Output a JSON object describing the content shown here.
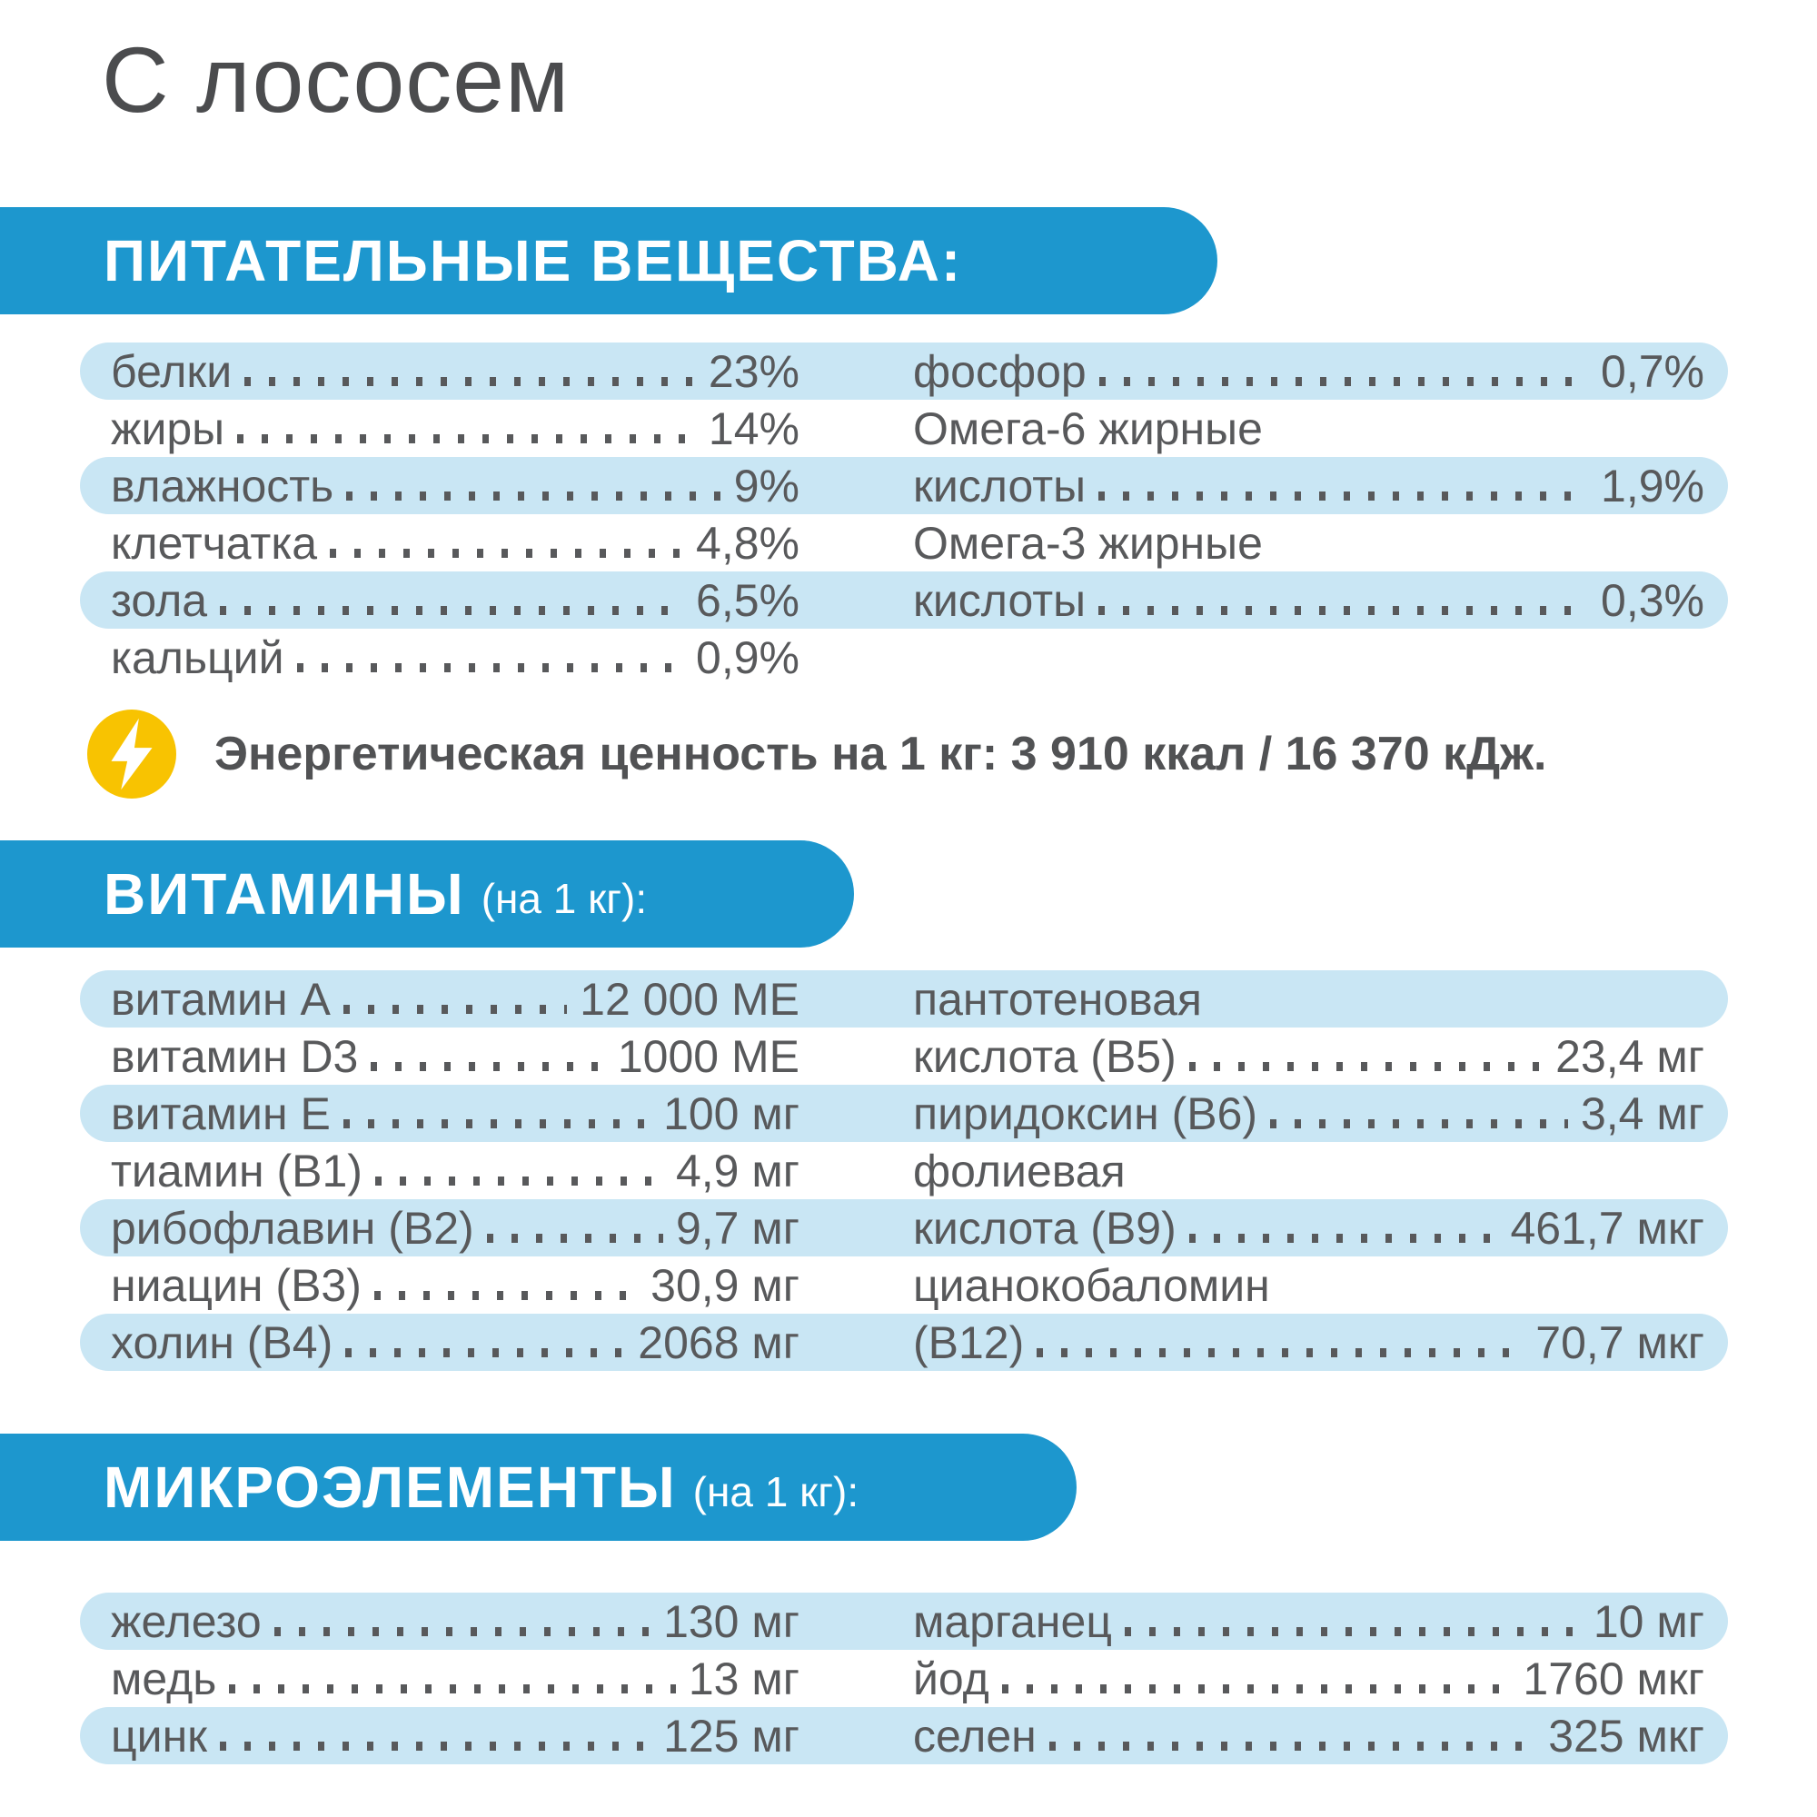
{
  "title": "С лососем",
  "colors": {
    "header_blue": "#1d97ce",
    "stripe_blue": "#c9e6f4",
    "text_gray": "#58595b",
    "energy_yellow": "#f8c301"
  },
  "energy": {
    "icon": "lightning-icon",
    "text": "Энергетическая ценность на 1 кг: 3 910 ккал / 16 370 кДж."
  },
  "sections": [
    {
      "id": "nutrients",
      "header": "ПИТАТЕЛЬНЫЕ ВЕЩЕСТВА:",
      "header_suffix": "",
      "rows": [
        {
          "left": {
            "label": "белки",
            "dots": true,
            "value": "23%"
          },
          "right": {
            "label": "фосфор",
            "dots": true,
            "value": "0,7%"
          }
        },
        {
          "left": {
            "label": "жиры",
            "dots": true,
            "value": "14%"
          },
          "right": {
            "label": "Омега-6 жирные",
            "dots": false,
            "value": ""
          }
        },
        {
          "left": {
            "label": "влажность",
            "dots": true,
            "value": "9%"
          },
          "right": {
            "label": "кислоты",
            "dots": true,
            "value": "1,9%"
          }
        },
        {
          "left": {
            "label": "клетчатка",
            "dots": true,
            "value": "4,8%"
          },
          "right": {
            "label": "Омега-3 жирные",
            "dots": false,
            "value": ""
          }
        },
        {
          "left": {
            "label": "зола",
            "dots": true,
            "value": "6,5%"
          },
          "right": {
            "label": "кислоты",
            "dots": true,
            "value": "0,3%"
          }
        },
        {
          "left": {
            "label": "кальций",
            "dots": true,
            "value": "0,9%"
          },
          "right": null
        }
      ]
    },
    {
      "id": "vitamins",
      "header": "ВИТАМИНЫ",
      "header_suffix": "(на 1 кг):",
      "rows": [
        {
          "left": {
            "label": "витамин А",
            "dots": true,
            "value": "12 000 МЕ"
          },
          "right": {
            "label": "пантотеновая",
            "dots": false,
            "value": ""
          }
        },
        {
          "left": {
            "label": "витамин D3",
            "dots": true,
            "value": "1000 МЕ"
          },
          "right": {
            "label": "кислота (В5)",
            "dots": true,
            "value": "23,4 мг"
          }
        },
        {
          "left": {
            "label": "витамин Е",
            "dots": true,
            "value": "100 мг"
          },
          "right": {
            "label": "пиридоксин (В6)",
            "dots": true,
            "value": "3,4 мг"
          }
        },
        {
          "left": {
            "label": "тиамин (В1)",
            "dots": true,
            "value": "4,9 мг"
          },
          "right": {
            "label": "фолиевая",
            "dots": false,
            "value": ""
          }
        },
        {
          "left": {
            "label": "рибофлавин (В2)",
            "dots": true,
            "value": "9,7 мг"
          },
          "right": {
            "label": "кислота (В9)",
            "dots": true,
            "value": "461,7 мкг"
          }
        },
        {
          "left": {
            "label": "ниацин (В3)",
            "dots": true,
            "value": "30,9 мг"
          },
          "right": {
            "label": "цианокобаломин",
            "dots": false,
            "value": ""
          }
        },
        {
          "left": {
            "label": "холин (В4)",
            "dots": true,
            "value": "2068 мг"
          },
          "right": {
            "label": "(В12)",
            "dots": true,
            "value": "70,7 мкг"
          }
        }
      ]
    },
    {
      "id": "trace-elements",
      "header": "МИКРОЭЛЕМЕНТЫ",
      "header_suffix": "(на 1 кг):",
      "rows": [
        {
          "left": {
            "label": "железо",
            "dots": true,
            "value": "130 мг"
          },
          "right": {
            "label": "марганец",
            "dots": true,
            "value": "10 мг"
          }
        },
        {
          "left": {
            "label": "медь",
            "dots": true,
            "value": "13 мг"
          },
          "right": {
            "label": "йод",
            "dots": true,
            "value": "1760 мкг"
          }
        },
        {
          "left": {
            "label": "цинк",
            "dots": true,
            "value": "125 мг"
          },
          "right": {
            "label": "селен",
            "dots": true,
            "value": "325 мкг"
          }
        }
      ]
    }
  ]
}
